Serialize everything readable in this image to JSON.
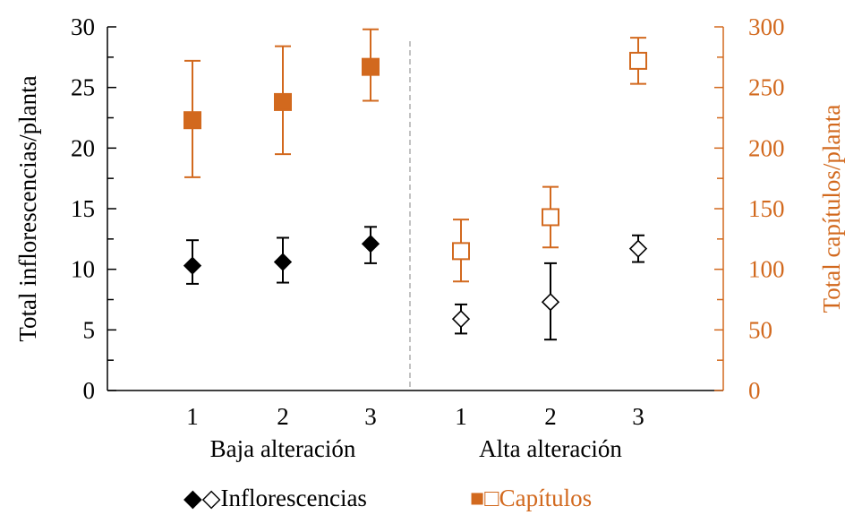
{
  "colors": {
    "inflorescencias": "#000000",
    "capitulos": "#d2691e",
    "divider": "#999999"
  },
  "chart_data": {
    "type": "scatter",
    "title": "",
    "categories": [
      "1",
      "2",
      "3",
      "1",
      "2",
      "3"
    ],
    "groups": [
      "Baja alteración",
      "Alta alteración"
    ],
    "ylabel": "Total inflorescencias/planta",
    "y2label": "Total capítulos/planta",
    "ylim": [
      0,
      30
    ],
    "y2lim": [
      0,
      300
    ],
    "yticks": [
      "0",
      "5",
      "10",
      "15",
      "20",
      "25",
      "30"
    ],
    "y2ticks": [
      "0",
      "50",
      "100",
      "150",
      "200",
      "250",
      "300"
    ],
    "legend": [
      "◆◇Inflorescencias",
      "■□Capítulos"
    ],
    "series": [
      {
        "name": "Inflorescencias",
        "axis": "left",
        "marker": "diamond",
        "filled": [
          true,
          true,
          true,
          false,
          false,
          false
        ],
        "values": [
          10.3,
          10.6,
          12.1,
          5.9,
          7.3,
          11.7
        ],
        "err_low": [
          8.8,
          8.9,
          10.5,
          4.7,
          4.2,
          10.6
        ],
        "err_high": [
          12.4,
          12.6,
          13.5,
          7.1,
          10.5,
          12.8
        ]
      },
      {
        "name": "Capítulos",
        "axis": "right",
        "marker": "square",
        "filled": [
          true,
          true,
          true,
          false,
          false,
          false
        ],
        "values": [
          223,
          238,
          267,
          115,
          143,
          272
        ],
        "err_low": [
          176,
          195,
          239,
          90,
          118,
          253
        ],
        "err_high": [
          272,
          284,
          298,
          141,
          168,
          291
        ]
      }
    ]
  }
}
